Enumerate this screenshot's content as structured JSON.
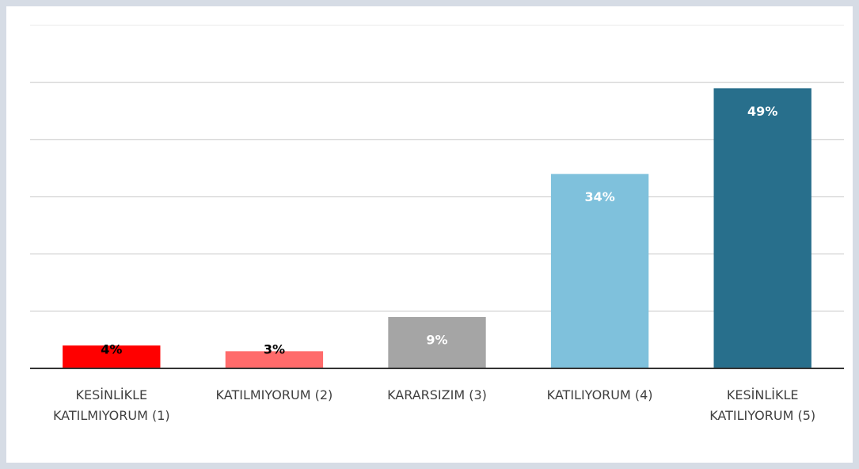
{
  "chart_data": {
    "type": "bar",
    "categories": [
      "KESİNLİKLE KATILMIYORUM (1)",
      "KATILMIYORUM (2)",
      "KARARSIZIM (3)",
      "KATILIYORUM (4)",
      "KESİNLİKLE KATILIYORUM (5)"
    ],
    "values": [
      4,
      3,
      9,
      34,
      49
    ],
    "value_labels": [
      "4%",
      "3%",
      "9%",
      "34%",
      "49%"
    ],
    "colors": [
      "#ff0000",
      "#ff6b6b",
      "#a5a5a5",
      "#7fc1dc",
      "#286f8c"
    ],
    "label_colors": [
      "#000000",
      "#000000",
      "#ffffff",
      "#ffffff",
      "#ffffff"
    ],
    "ylim": [
      0,
      60
    ],
    "yticks": [
      0,
      10,
      20,
      30,
      40,
      50,
      60
    ],
    "grid": true
  }
}
